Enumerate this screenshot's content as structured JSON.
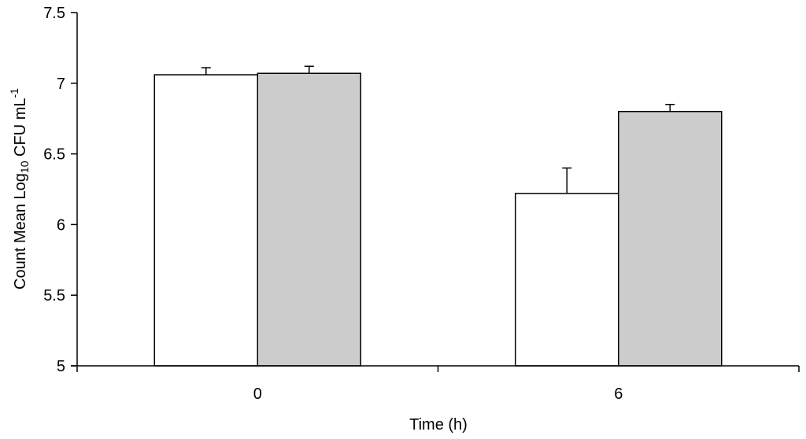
{
  "chart_data": {
    "type": "bar",
    "categories": [
      "0",
      "6"
    ],
    "series": [
      {
        "values": [
          7.06,
          6.22
        ],
        "errors": [
          0.05,
          0.18
        ],
        "color": "#ffffff"
      },
      {
        "values": [
          7.07,
          6.8
        ],
        "errors": [
          0.05,
          0.05
        ],
        "color": "#cccccc"
      }
    ],
    "xlabel": "Time (h)",
    "ylabel": {
      "prefix": "Count Mean Log",
      "subscript": "10",
      "middle": " CFU mL",
      "superscript": "-1"
    },
    "ylim": [
      5,
      7.5
    ],
    "yticks": [
      "5",
      "5.5",
      "6",
      "6.5",
      "7",
      "7.5"
    ],
    "grid": false
  }
}
